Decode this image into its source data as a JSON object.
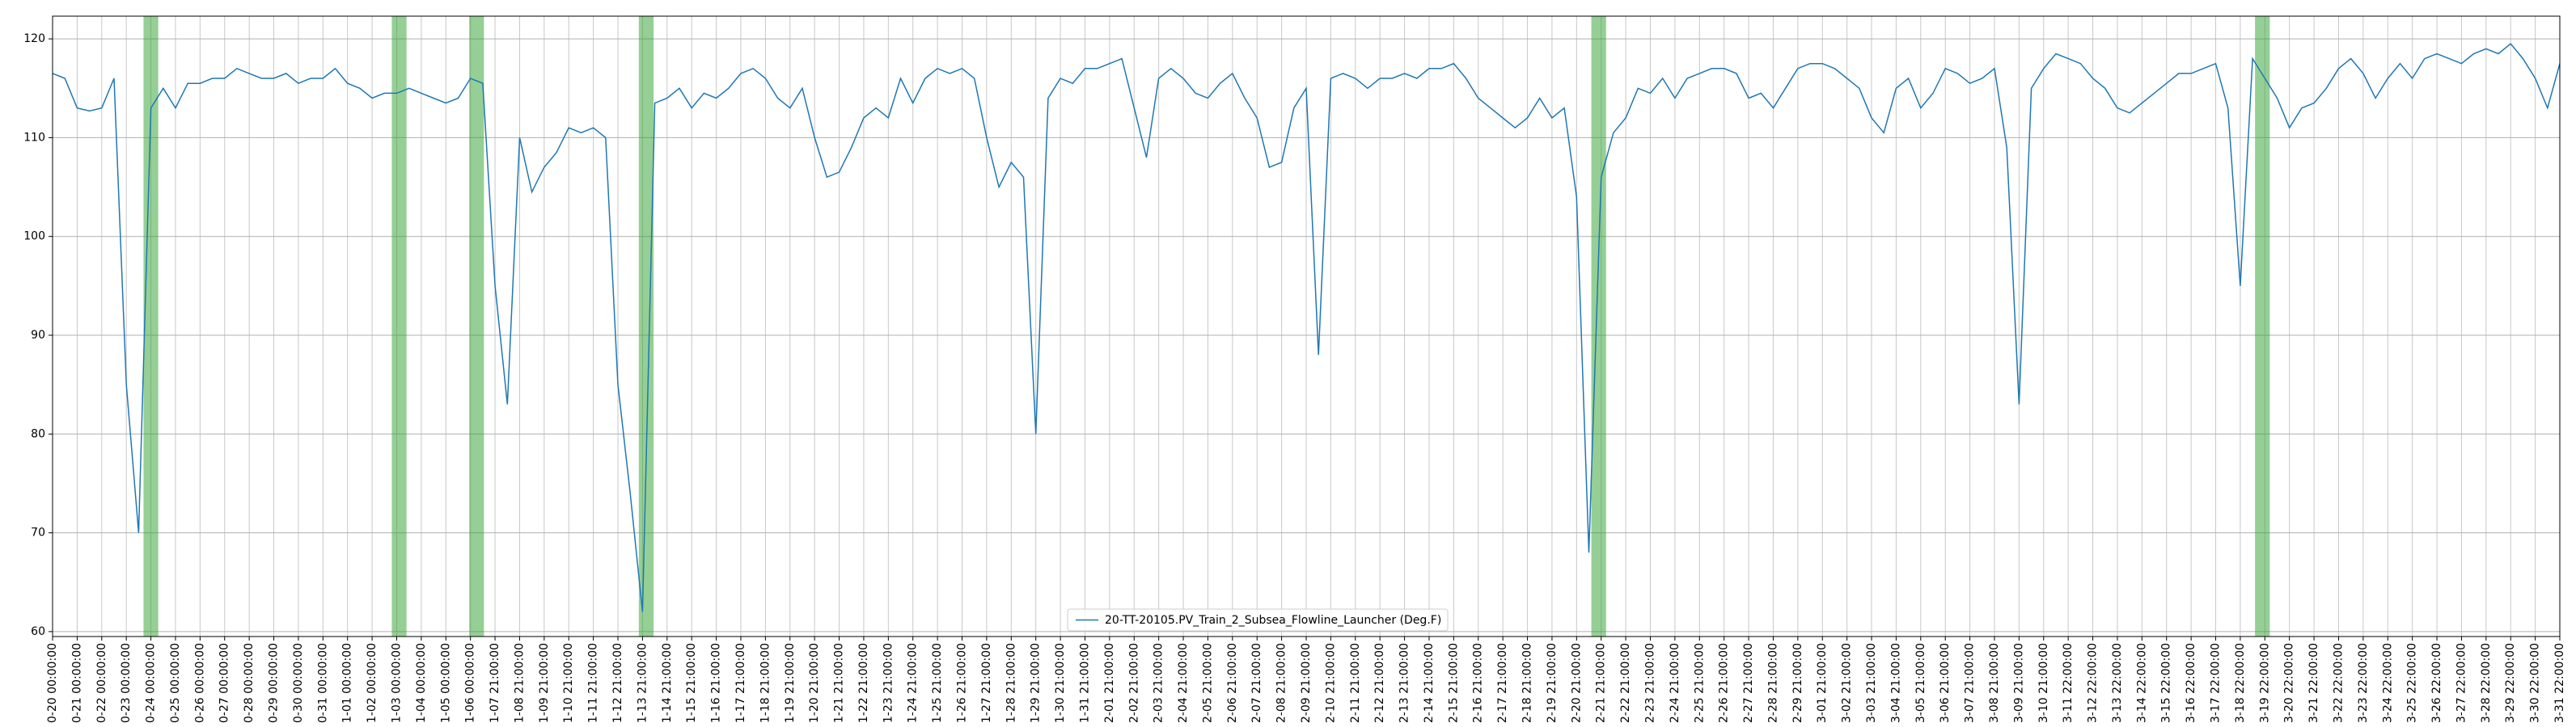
{
  "chart_data": {
    "type": "line",
    "categories": [
      "0-20 00:00:00",
      null,
      "0-21 00:00:00",
      null,
      "0-22 00:00:00",
      null,
      "0-23 00:00:00",
      null,
      "0-24 00:00:00",
      null,
      "0-25 00:00:00",
      null,
      "0-26 00:00:00",
      null,
      "0-27 00:00:00",
      null,
      "0-28 00:00:00",
      null,
      "0-29 00:00:00",
      null,
      "0-30 00:00:00",
      null,
      "0-31 00:00:00",
      null,
      "1-01 00:00:00",
      null,
      "1-02 00:00:00",
      null,
      "1-03 00:00:00",
      null,
      "1-04 00:00:00",
      null,
      "1-05 00:00:00",
      null,
      "1-06 00:00:00",
      null,
      "1-07 21:00:00",
      null,
      "1-08 21:00:00",
      null,
      "1-09 21:00:00",
      null,
      "1-10 21:00:00",
      null,
      "1-11 21:00:00",
      null,
      "1-12 21:00:00",
      null,
      "1-13 21:00:00",
      null,
      "1-14 21:00:00",
      null,
      "1-15 21:00:00",
      null,
      "1-16 21:00:00",
      null,
      "1-17 21:00:00",
      null,
      "1-18 21:00:00",
      null,
      "1-19 21:00:00",
      null,
      "1-20 21:00:00",
      null,
      "1-21 21:00:00",
      null,
      "1-22 21:00:00",
      null,
      "1-23 21:00:00",
      null,
      "1-24 21:00:00",
      null,
      "1-25 21:00:00",
      null,
      "1-26 21:00:00",
      null,
      "1-27 21:00:00",
      null,
      "1-28 21:00:00",
      null,
      "1-29 21:00:00",
      null,
      "1-30 21:00:00",
      null,
      "1-31 21:00:00",
      null,
      "2-01 21:00:00",
      null,
      "2-02 21:00:00",
      null,
      "2-03 21:00:00",
      null,
      "2-04 21:00:00",
      null,
      "2-05 21:00:00",
      null,
      "2-06 21:00:00",
      null,
      "2-07 21:00:00",
      null,
      "2-08 21:00:00",
      null,
      "2-09 21:00:00",
      null,
      "2-10 21:00:00",
      null,
      "2-11 21:00:00",
      null,
      "2-12 21:00:00",
      null,
      "2-13 21:00:00",
      null,
      "2-14 21:00:00",
      null,
      "2-15 21:00:00",
      null,
      "2-16 21:00:00",
      null,
      "2-17 21:00:00",
      null,
      "2-18 21:00:00",
      null,
      "2-19 21:00:00",
      null,
      "2-20 21:00:00",
      null,
      "2-21 21:00:00",
      null,
      "2-22 21:00:00",
      null,
      "2-23 21:00:00",
      null,
      "2-24 21:00:00",
      null,
      "2-25 21:00:00",
      null,
      "2-26 21:00:00",
      null,
      "2-27 21:00:00",
      null,
      "2-28 21:00:00",
      null,
      "2-29 21:00:00",
      null,
      "3-01 21:00:00",
      null,
      "3-02 21:00:00",
      null,
      "3-03 21:00:00",
      null,
      "3-04 21:00:00",
      null,
      "3-05 21:00:00",
      null,
      "3-06 21:00:00",
      null,
      "3-07 21:00:00",
      null,
      "3-08 21:00:00",
      null,
      "3-09 21:00:00",
      null,
      "3-10 21:00:00",
      null,
      "3-11 22:00:00",
      null,
      "3-12 22:00:00",
      null,
      "3-13 22:00:00",
      null,
      "3-14 22:00:00",
      null,
      "3-15 22:00:00",
      null,
      "3-16 22:00:00",
      null,
      "3-17 22:00:00",
      null,
      "3-18 22:00:00",
      null,
      "3-19 22:00:00",
      null,
      "3-20 22:00:00",
      null,
      "3-21 22:00:00",
      null,
      "3-22 22:00:00",
      null,
      "3-23 22:00:00",
      null,
      "3-24 22:00:00",
      null,
      "3-25 22:00:00",
      null,
      "3-26 22:00:00",
      null,
      "3-27 22:00:00",
      null,
      "3-28 22:00:00",
      null,
      "3-29 22:00:00",
      null,
      "3-30 22:00:00",
      null,
      "3-31 22:00:00"
    ],
    "series": [
      {
        "name": "20-TT-20105.PV_Train_2_Subsea_Flowline_Launcher (Deg.F)",
        "color": "#1f77b4",
        "values": [
          116.5,
          116,
          113,
          112.7,
          113,
          116,
          85,
          70,
          113,
          115,
          113,
          115.5,
          115.5,
          116,
          116,
          117,
          116.5,
          116,
          116,
          116.5,
          115.5,
          116,
          116,
          117,
          115.5,
          115,
          114,
          114.5,
          114.5,
          115,
          114.5,
          114,
          113.5,
          114,
          116,
          115.5,
          95,
          83,
          110,
          104.5,
          107,
          108.5,
          111,
          110.5,
          111,
          110,
          85,
          74,
          62,
          113.5,
          114,
          115,
          113,
          114.5,
          114,
          115,
          116.5,
          117,
          116,
          114,
          113,
          115,
          110,
          106,
          106.5,
          109,
          112,
          113,
          112,
          116,
          113.5,
          116,
          117,
          116.5,
          117,
          116,
          110,
          105,
          107.5,
          106,
          80,
          114,
          116,
          115.5,
          117,
          117,
          117.5,
          118,
          113,
          108,
          116,
          117,
          116,
          114.5,
          114,
          115.5,
          116.5,
          114,
          112,
          107,
          107.5,
          113,
          115,
          88,
          116,
          116.5,
          116,
          115,
          116,
          116,
          116.5,
          116,
          117,
          117,
          117.5,
          116,
          114,
          113,
          112,
          111,
          112,
          114,
          112,
          113,
          104,
          68,
          106,
          110.5,
          112,
          115,
          114.5,
          116,
          114,
          116,
          116.5,
          117,
          117,
          116.5,
          114,
          114.5,
          113,
          115,
          117,
          117.5,
          117.5,
          117,
          116,
          115,
          112,
          110.5,
          115,
          116,
          113,
          114.5,
          117,
          116.5,
          115.5,
          116,
          117,
          109,
          83,
          115,
          117,
          118.5,
          118,
          117.5,
          116,
          115,
          113,
          112.5,
          113.5,
          114.5,
          115.5,
          116.5,
          116.5,
          117,
          117.5,
          113,
          95,
          118,
          116,
          114,
          111,
          113,
          113.5,
          115,
          117,
          118,
          116.5,
          114,
          116,
          117.5,
          116,
          118,
          118.5,
          118,
          117.5,
          118.5,
          119,
          118.5,
          119.5,
          118,
          116,
          113,
          117.5
        ]
      }
    ],
    "shaded_spans": [
      [
        7.4,
        8.6
      ],
      [
        27.6,
        28.8
      ],
      [
        33.9,
        35.1
      ],
      [
        47.7,
        48.9
      ],
      [
        125.2,
        126.4
      ],
      [
        179.2,
        180.4
      ]
    ],
    "shaded_color": "#2ca02c",
    "ylim": [
      59.5,
      122.3
    ],
    "yticks": [
      60,
      70,
      80,
      90,
      100,
      110,
      120
    ],
    "grid": true,
    "legend": "lower center"
  }
}
